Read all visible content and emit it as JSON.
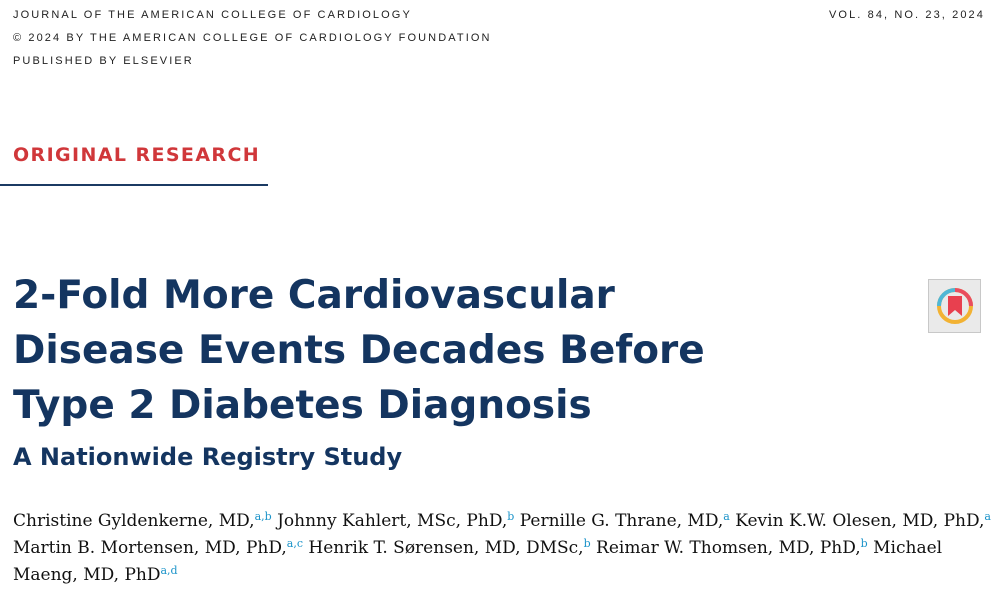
{
  "header": {
    "journal": "JOURNAL OF THE AMERICAN COLLEGE OF CARDIOLOGY",
    "copyright": "© 2024 BY THE AMERICAN COLLEGE OF CARDIOLOGY FOUNDATION",
    "publisher": "PUBLISHED BY ELSEVIER",
    "volume": "VOL. 84, NO. 23, 2024"
  },
  "section_label": "ORIGINAL RESEARCH",
  "article": {
    "title_lines": [
      "2-Fold More Cardiovascular",
      "Disease Events Decades Before",
      "Type 2 Diabetes Diagnosis"
    ],
    "subtitle": "A Nationwide Registry Study"
  },
  "authors": [
    {
      "name": "Christine Gyldenkerne, MD,",
      "aff": "a,b"
    },
    {
      "name": "Johnny Kahlert, MSc, PhD,",
      "aff": "b"
    },
    {
      "name": "Pernille G. Thrane, MD,",
      "aff": "a"
    },
    {
      "name": "Kevin K.W. Olesen, MD, PhD,",
      "aff": "a"
    },
    {
      "name": "Martin B. Mortensen, MD, PhD,",
      "aff": "a,c"
    },
    {
      "name": "Henrik T. Sørensen, MD, DMSc,",
      "aff": "b"
    },
    {
      "name": "Reimar W. Thomsen, MD, PhD,",
      "aff": "b"
    },
    {
      "name": "Michael Maeng, MD, PhD",
      "aff": "a,d"
    }
  ],
  "icons": {
    "bookmark": "bookmark-icon"
  },
  "colors": {
    "section_red": "#d0373a",
    "title_navy": "#143560",
    "superscript_blue": "#1a93c9"
  }
}
